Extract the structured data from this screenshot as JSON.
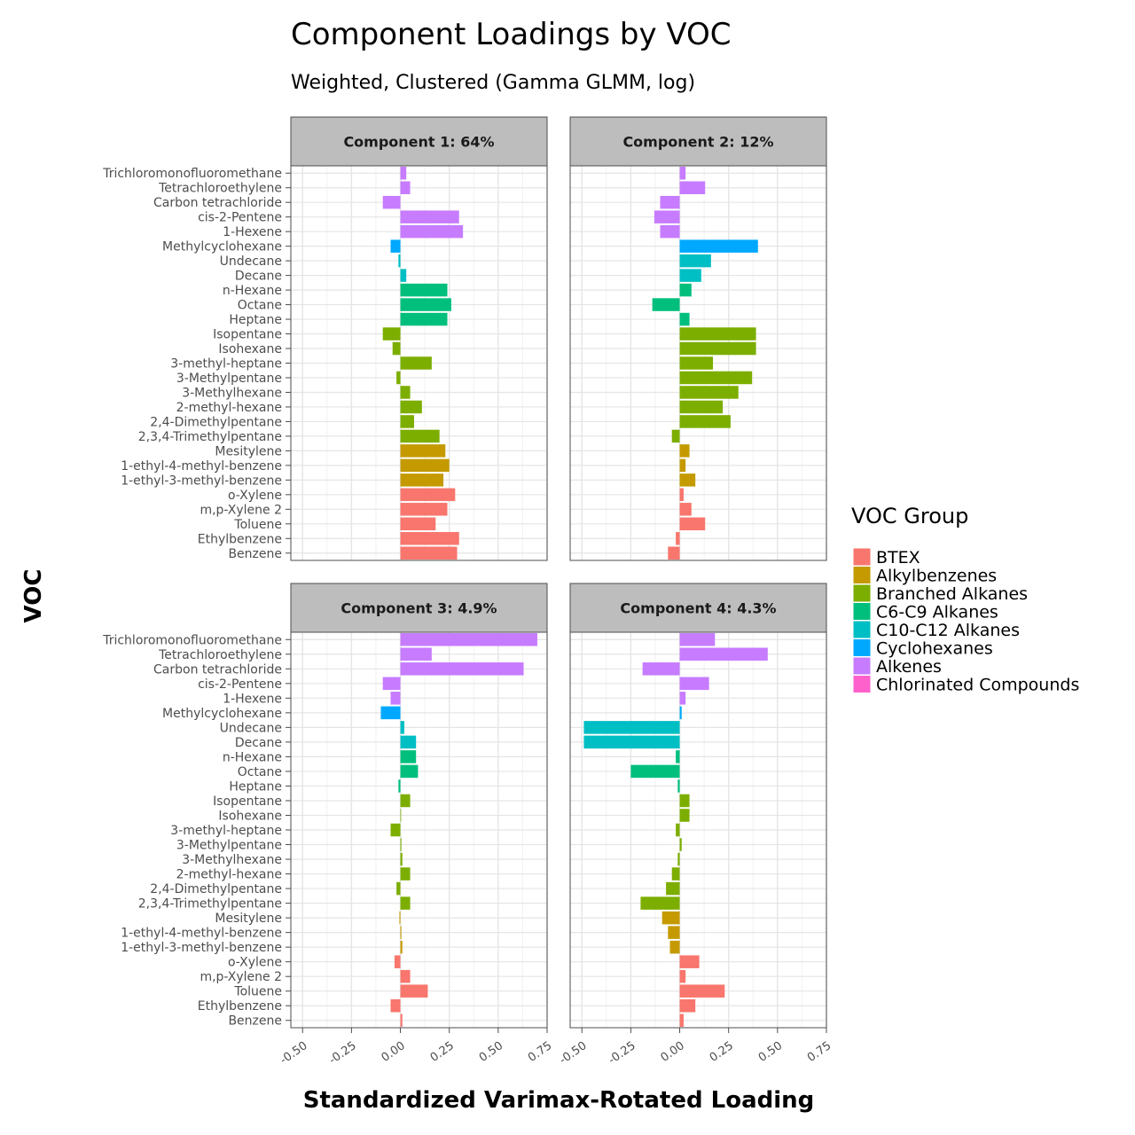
{
  "chart_data": {
    "type": "bar",
    "orientation": "horizontal",
    "title": "Component Loadings by VOC",
    "subtitle": "Weighted, Clustered (Gamma GLMM, log)",
    "xlabel": "Standardized Varimax-Rotated Loading",
    "ylabel": "VOC",
    "xlim": [
      -0.56,
      0.75
    ],
    "xticks": [
      -0.5,
      -0.25,
      0.0,
      0.25,
      0.5,
      0.75
    ],
    "xtick_labels": [
      "-0.50",
      "-0.25",
      "0.00",
      "0.25",
      "0.50",
      "0.75"
    ],
    "grid": true,
    "legend_position": "right",
    "legend": {
      "title": "VOC Group",
      "entries": [
        {
          "label": "BTEX",
          "color": "#F8766D"
        },
        {
          "label": "Alkylbenzenes",
          "color": "#C49A00"
        },
        {
          "label": "Branched Alkanes",
          "color": "#7CAE00"
        },
        {
          "label": "C6-C9 Alkanes",
          "color": "#00BF7D"
        },
        {
          "label": "C10-C12 Alkanes",
          "color": "#00BFC4"
        },
        {
          "label": "Cyclohexanes",
          "color": "#00A9FF"
        },
        {
          "label": "Alkenes",
          "color": "#C77CFF"
        },
        {
          "label": "Chlorinated Compounds",
          "color": "#FF61CC"
        }
      ]
    },
    "categories": [
      "Trichloromonofluoromethane",
      "Tetrachloroethylene",
      "Carbon tetrachloride",
      "cis-2-Pentene",
      "1-Hexene",
      "Methylcyclohexane",
      "Undecane",
      "Decane",
      "n-Hexane",
      "Octane",
      "Heptane",
      "Isopentane",
      "Isohexane",
      "3-methyl-heptane",
      "3-Methylpentane",
      "3-Methylhexane",
      "2-methyl-hexane",
      "2,4-Dimethylpentane",
      "2,3,4-Trimethylpentane",
      "Mesitylene",
      "1-ethyl-4-methyl-benzene",
      "1-ethyl-3-methyl-benzene",
      "o-Xylene",
      "m,p-Xylene 2",
      "Toluene",
      "Ethylbenzene",
      "Benzene"
    ],
    "category_groups": [
      6,
      6,
      6,
      6,
      6,
      5,
      4,
      4,
      3,
      3,
      3,
      2,
      2,
      2,
      2,
      2,
      2,
      2,
      2,
      1,
      1,
      1,
      0,
      0,
      0,
      0,
      0
    ],
    "panels": [
      {
        "name": "Component 1: 64%",
        "values": [
          0.03,
          0.05,
          -0.09,
          0.3,
          0.32,
          -0.05,
          -0.01,
          0.03,
          0.24,
          0.26,
          0.24,
          -0.09,
          -0.04,
          0.16,
          -0.02,
          0.05,
          0.11,
          0.07,
          0.2,
          0.23,
          0.25,
          0.22,
          0.28,
          0.24,
          0.18,
          0.3,
          0.29
        ]
      },
      {
        "name": "Component 2: 12%",
        "values": [
          0.03,
          0.13,
          -0.1,
          -0.13,
          -0.1,
          0.4,
          0.16,
          0.11,
          0.06,
          -0.14,
          0.05,
          0.39,
          0.39,
          0.17,
          0.37,
          0.3,
          0.22,
          0.26,
          -0.04,
          0.05,
          0.03,
          0.08,
          0.02,
          0.06,
          0.13,
          -0.02,
          -0.06
        ]
      },
      {
        "name": "Component 3: 4.9%",
        "values": [
          0.7,
          0.16,
          0.63,
          -0.09,
          -0.05,
          -0.1,
          0.02,
          0.08,
          0.08,
          0.09,
          -0.01,
          0.05,
          0.0,
          -0.05,
          0.005,
          0.01,
          0.05,
          -0.02,
          0.05,
          -0.005,
          0.005,
          0.01,
          -0.03,
          0.05,
          0.14,
          -0.05,
          0.01
        ]
      },
      {
        "name": "Component 4: 4.3%",
        "values": [
          0.18,
          0.45,
          -0.19,
          0.15,
          0.03,
          0.01,
          -0.49,
          -0.49,
          -0.02,
          -0.25,
          -0.01,
          0.05,
          0.05,
          -0.02,
          0.01,
          -0.01,
          -0.04,
          -0.07,
          -0.2,
          -0.09,
          -0.06,
          -0.05,
          0.1,
          0.03,
          0.23,
          0.08,
          0.02
        ]
      }
    ]
  }
}
